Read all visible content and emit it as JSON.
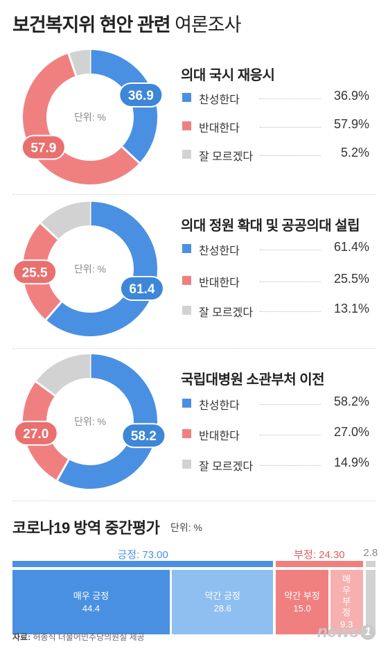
{
  "title": {
    "bold": "보건복지위 현안 관련",
    "light": "여론조사"
  },
  "unit_label": "단위: %",
  "colors": {
    "favor": "#4a90e2",
    "oppose": "#f08080",
    "unsure": "#d2d2d2",
    "favor_light": "#8fbff0",
    "oppose_light": "#f6b0b0"
  },
  "chart_data": [
    {
      "type": "pie",
      "title": "의대 국시 재응시",
      "categories": [
        "찬성한다",
        "반대한다",
        "잘 모르겠다"
      ],
      "values": [
        36.9,
        57.9,
        5.2
      ],
      "values_text": [
        "36.9%",
        "57.9%",
        "5.2%"
      ],
      "badges": [
        "36.9",
        "57.9"
      ]
    },
    {
      "type": "pie",
      "title": "의대 정원 확대 및 공공의대 설립",
      "categories": [
        "찬성한다",
        "반대한다",
        "잘 모르겠다"
      ],
      "values": [
        61.4,
        25.5,
        13.1
      ],
      "values_text": [
        "61.4%",
        "25.5%",
        "13.1%"
      ],
      "badges": [
        "61.4",
        "25.5"
      ]
    },
    {
      "type": "pie",
      "title": "국립대병원 소관부처 이전",
      "categories": [
        "찬성한다",
        "반대한다",
        "잘 모르겠다"
      ],
      "values": [
        58.2,
        27.0,
        14.9
      ],
      "values_text": [
        "58.2%",
        "27.0%",
        "14.9%"
      ],
      "badges": [
        "58.2",
        "27.0"
      ]
    },
    {
      "type": "bar",
      "title": "코로나19 방역 중간평가",
      "unit": "단위: %",
      "groups": [
        {
          "label": "긍정",
          "value": 73.0,
          "value_text": "73.00"
        },
        {
          "label": "부정",
          "value": 24.3,
          "value_text": "24.30"
        },
        {
          "label": "",
          "value": 2.8,
          "value_text": "2.8"
        }
      ],
      "categories": [
        "매우 긍정",
        "약간 긍정",
        "약간 부정",
        "매우 부정"
      ],
      "values": [
        44.4,
        28.6,
        15.0,
        9.3
      ],
      "values_text": [
        "44.4",
        "28.6",
        "15.0",
        "9.3"
      ]
    }
  ],
  "source": {
    "label": "자료:",
    "text": "허종식 더불어민주당의원실 제공"
  },
  "logo": {
    "text": "news",
    "mark": "1"
  }
}
